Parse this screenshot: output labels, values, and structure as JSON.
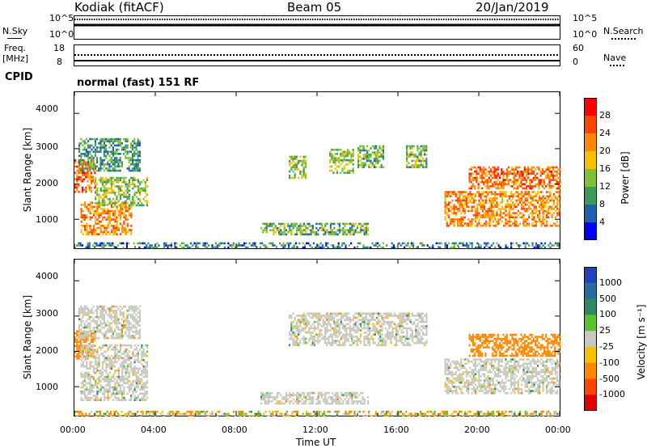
{
  "header": {
    "station": "Kodiak (fitACF)",
    "beam": "Beam 05",
    "date": "20/Jan/2019"
  },
  "noise_panel": {
    "left_label": "N.Sky",
    "right_label": "N.Search",
    "left_ticks": [
      "10^5",
      "10^0"
    ],
    "right_ticks": [
      "10^5",
      "10^0"
    ]
  },
  "freq_panel": {
    "left_label_line1": "Freq.",
    "left_label_line2": "[MHz]",
    "right_label": "Nave",
    "left_ticks": [
      "18",
      "8"
    ],
    "right_ticks": [
      "60",
      "0"
    ]
  },
  "cpid_panel": {
    "label": "CPID",
    "text": "normal (fast) 151 RF"
  },
  "power_panel": {
    "ylabel": "Slant Range [km]",
    "yticks": [
      "4000",
      "3000",
      "2000",
      "1000"
    ],
    "colorbar_label": "Power [dB]",
    "colorbar_ticks": [
      "28",
      "24",
      "20",
      "16",
      "12",
      "8",
      "4"
    ],
    "colorbar_colors": [
      "#ff0000",
      "#ff4400",
      "#ff8800",
      "#f5c000",
      "#7fc23a",
      "#3a9a5a",
      "#1e5fb0",
      "#0000ff"
    ]
  },
  "velocity_panel": {
    "ylabel": "Slant Range [km]",
    "yticks": [
      "4000",
      "3000",
      "2000",
      "1000"
    ],
    "colorbar_label": "Velocity [m s⁻¹]",
    "colorbar_ticks": [
      "1000",
      "500",
      "100",
      "25",
      "-25",
      "-100",
      "-500",
      "-1000"
    ],
    "colorbar_colors": [
      "#2040c0",
      "#2a6aa0",
      "#2e8a5e",
      "#5cc030",
      "#c8c8c0",
      "#f5c000",
      "#ff8800",
      "#ff4400",
      "#e00000"
    ],
    "ground_scatter_color": "#c8c8c0"
  },
  "xaxis": {
    "ticks": [
      "00:00",
      "04:00",
      "08:00",
      "12:00",
      "16:00",
      "20:00",
      "00:00"
    ],
    "label": "Time UT"
  },
  "chart_data": [
    {
      "type": "heatmap",
      "title": "Power [dB]",
      "xlabel": "Time UT",
      "ylabel": "Slant Range [km]",
      "x_range_hours": [
        0,
        24
      ],
      "ylim": [
        180,
        4600
      ],
      "color_scale": {
        "min": 0,
        "max": 32,
        "ticks": [
          4,
          8,
          12,
          16,
          20,
          24,
          28
        ]
      },
      "regions": [
        {
          "t0": 0.0,
          "t1": 1.0,
          "r0": 1800,
          "r1": 2700,
          "value": 24
        },
        {
          "t0": 0.3,
          "t1": 2.8,
          "r0": 600,
          "r1": 1500,
          "value": 22
        },
        {
          "t0": 1.0,
          "t1": 3.6,
          "r0": 1400,
          "r1": 2200,
          "value": 14
        },
        {
          "t0": 0.2,
          "t1": 3.2,
          "r0": 2400,
          "r1": 3300,
          "value": 10
        },
        {
          "t0": 9.2,
          "t1": 14.5,
          "r0": 550,
          "r1": 900,
          "value": 12
        },
        {
          "t0": 10.6,
          "t1": 11.4,
          "r0": 2200,
          "r1": 2800,
          "value": 14
        },
        {
          "t0": 12.6,
          "t1": 13.8,
          "r0": 2300,
          "r1": 3000,
          "value": 14
        },
        {
          "t0": 14.0,
          "t1": 15.3,
          "r0": 2500,
          "r1": 3100,
          "value": 12
        },
        {
          "t0": 16.4,
          "t1": 17.4,
          "r0": 2500,
          "r1": 3100,
          "value": 12
        },
        {
          "t0": 18.3,
          "t1": 24.0,
          "r0": 800,
          "r1": 1800,
          "value": 22
        },
        {
          "t0": 19.5,
          "t1": 24.0,
          "r0": 1900,
          "r1": 2500,
          "value": 24
        },
        {
          "t0": 0.0,
          "t1": 24.0,
          "r0": 180,
          "r1": 350,
          "value": 8
        }
      ]
    },
    {
      "type": "heatmap",
      "title": "Velocity [m s⁻¹]",
      "xlabel": "Time UT",
      "ylabel": "Slant Range [km]",
      "x_range_hours": [
        0,
        24
      ],
      "ylim": [
        180,
        4600
      ],
      "color_scale": {
        "ticks": [
          1000,
          500,
          100,
          25,
          -25,
          -100,
          -500,
          -1000
        ]
      },
      "regions": [
        {
          "t0": 0.0,
          "t1": 1.0,
          "r0": 1800,
          "r1": 2600,
          "value": -300
        },
        {
          "t0": 0.3,
          "t1": 3.6,
          "r0": 600,
          "r1": 2200,
          "value": 0
        },
        {
          "t0": 0.2,
          "t1": 3.2,
          "r0": 2400,
          "r1": 3300,
          "value": 0
        },
        {
          "t0": 9.2,
          "t1": 14.5,
          "r0": 500,
          "r1": 850,
          "value": 0
        },
        {
          "t0": 10.6,
          "t1": 17.4,
          "r0": 2200,
          "r1": 3100,
          "value": 0
        },
        {
          "t0": 18.3,
          "t1": 24.0,
          "r0": 800,
          "r1": 1800,
          "value": 0
        },
        {
          "t0": 19.5,
          "t1": 24.0,
          "r0": 1900,
          "r1": 2500,
          "value": -300
        },
        {
          "t0": 0.0,
          "t1": 24.0,
          "r0": 180,
          "r1": 320,
          "value": -60
        }
      ]
    }
  ]
}
